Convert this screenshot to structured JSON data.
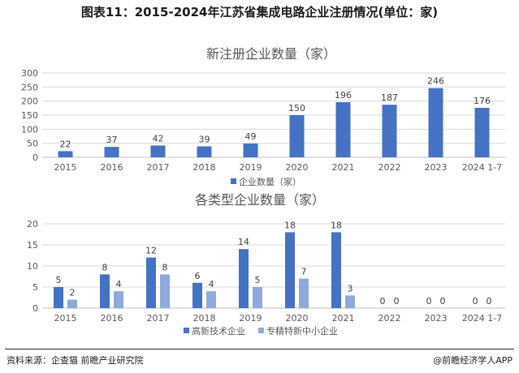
{
  "page": {
    "title": "图表11：2015-2024年江苏省集成电路企业注册情况(单位：家)",
    "source": "资料来源：企查猫 前瞻产业研究院",
    "credit": "@前瞻经济学人APP"
  },
  "colors": {
    "dark_blue": "#4472C4",
    "light_blue": "#8EA9DB",
    "grid": "#d9d9d9",
    "axis_text": "#595959"
  },
  "chart_data": [
    {
      "type": "bar",
      "title": "新注册企业数量（家）",
      "categories": [
        "2015",
        "2016",
        "2017",
        "2018",
        "2019",
        "2020",
        "2021",
        "2022",
        "2023",
        "2024 1-7"
      ],
      "series": [
        {
          "name": "企业数量（家）",
          "values": [
            22,
            37,
            42,
            39,
            49,
            150,
            196,
            187,
            246,
            176
          ]
        }
      ],
      "ylim": [
        0,
        300
      ],
      "yticks": [
        0,
        50,
        100,
        150,
        200,
        250,
        300
      ],
      "grid": true,
      "legend": "bottom"
    },
    {
      "type": "bar",
      "title": "各类型企业数量（家）",
      "categories": [
        "2015",
        "2016",
        "2017",
        "2018",
        "2019",
        "2020",
        "2021",
        "2022",
        "2023",
        "2024 1-7"
      ],
      "series": [
        {
          "name": "高新技术企业",
          "values": [
            5,
            8,
            12,
            6,
            14,
            18,
            18,
            0,
            0,
            0
          ]
        },
        {
          "name": "专精特新中小企业",
          "values": [
            2,
            4,
            8,
            4,
            5,
            7,
            3,
            0,
            0,
            0
          ]
        }
      ],
      "ylim": [
        0,
        20
      ],
      "yticks": [
        0,
        5,
        10,
        15,
        20
      ],
      "grid": true,
      "legend": "bottom"
    }
  ]
}
